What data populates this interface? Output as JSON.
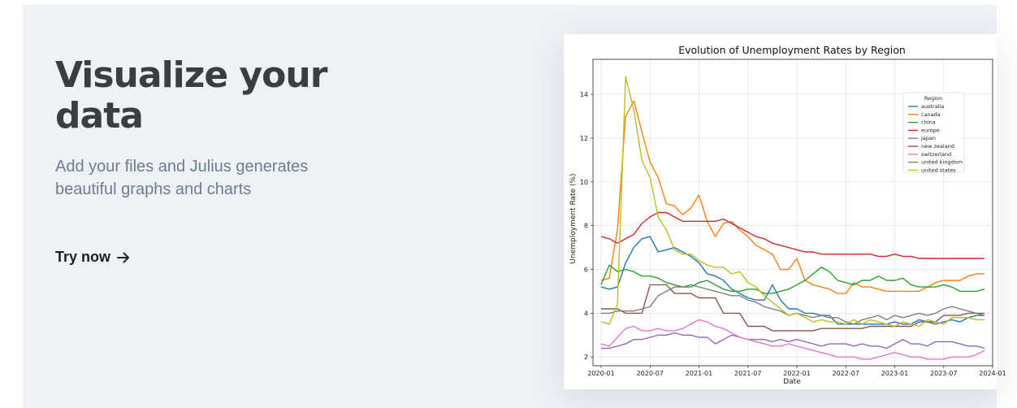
{
  "hero": {
    "title_line1": "Visualize your",
    "title_line2": "data",
    "subtitle": "Add your files and Julius generates beautiful graphs and charts",
    "cta_label": "Try now",
    "cta_icon": "arrow-right-icon"
  },
  "colors": {
    "panel_bg": "#eef2f7",
    "title": "#3b3d42",
    "subtitle": "#6e7d90",
    "cta": "#1c1f24"
  },
  "chart_data": {
    "type": "line",
    "title": "Evolution of Unemployment Rates by Region",
    "xlabel": "Date",
    "ylabel": "Unemployment Rate (%)",
    "ylim": [
      1.6,
      15.6
    ],
    "xlim": [
      "2019-12",
      "2024-01"
    ],
    "y_ticks": [
      "2",
      "4",
      "6",
      "8",
      "10",
      "12",
      "14"
    ],
    "x_ticks": [
      "2020-01",
      "2020-07",
      "2021-01",
      "2021-07",
      "2022-01",
      "2022-07",
      "2023-01",
      "2023-07",
      "2024-01"
    ],
    "grid": true,
    "legend_title": "Region",
    "legend_position": "top-right",
    "x": [
      "2020-01",
      "2020-02",
      "2020-03",
      "2020-04",
      "2020-05",
      "2020-06",
      "2020-07",
      "2020-08",
      "2020-09",
      "2020-10",
      "2020-11",
      "2020-12",
      "2021-01",
      "2021-02",
      "2021-03",
      "2021-04",
      "2021-05",
      "2021-06",
      "2021-07",
      "2021-08",
      "2021-09",
      "2021-10",
      "2021-11",
      "2021-12",
      "2022-01",
      "2022-02",
      "2022-03",
      "2022-04",
      "2022-05",
      "2022-06",
      "2022-07",
      "2022-08",
      "2022-09",
      "2022-10",
      "2022-11",
      "2022-12",
      "2023-01",
      "2023-02",
      "2023-03",
      "2023-04",
      "2023-05",
      "2023-06",
      "2023-07",
      "2023-08",
      "2023-09",
      "2023-10",
      "2023-11",
      "2023-12"
    ],
    "series": [
      {
        "name": "australia",
        "color": "#1f77b4",
        "values": [
          5.2,
          5.1,
          5.2,
          6.3,
          7.0,
          7.4,
          7.5,
          6.8,
          6.9,
          7.0,
          6.8,
          6.6,
          6.3,
          5.8,
          5.7,
          5.5,
          5.1,
          4.9,
          4.7,
          4.6,
          4.6,
          5.3,
          4.6,
          4.2,
          4.2,
          4.0,
          4.0,
          3.9,
          3.9,
          3.5,
          3.5,
          3.5,
          3.5,
          3.5,
          3.5,
          3.5,
          3.6,
          3.5,
          3.5,
          3.7,
          3.6,
          3.5,
          3.6,
          3.7,
          3.6,
          3.8,
          3.9,
          3.9
        ]
      },
      {
        "name": "canada",
        "color": "#ff7f0e",
        "values": [
          5.5,
          5.6,
          7.8,
          13.0,
          13.7,
          12.3,
          10.9,
          10.2,
          9.0,
          8.9,
          8.5,
          8.8,
          9.4,
          8.2,
          7.5,
          8.1,
          8.2,
          7.8,
          7.5,
          7.1,
          6.9,
          6.7,
          6.0,
          6.0,
          6.5,
          5.5,
          5.3,
          5.2,
          5.1,
          4.9,
          4.9,
          5.4,
          5.2,
          5.2,
          5.1,
          5.0,
          5.0,
          5.0,
          5.0,
          5.0,
          5.2,
          5.4,
          5.5,
          5.5,
          5.5,
          5.7,
          5.8,
          5.8
        ]
      },
      {
        "name": "china",
        "color": "#2ca02c",
        "values": [
          5.3,
          6.2,
          5.9,
          6.0,
          5.9,
          5.7,
          5.7,
          5.6,
          5.4,
          5.3,
          5.2,
          5.2,
          5.4,
          5.5,
          5.3,
          5.1,
          5.0,
          5.0,
          5.1,
          5.1,
          4.9,
          4.9,
          5.0,
          5.1,
          5.3,
          5.5,
          5.8,
          6.1,
          5.9,
          5.5,
          5.4,
          5.3,
          5.5,
          5.5,
          5.7,
          5.5,
          5.5,
          5.6,
          5.3,
          5.2,
          5.2,
          5.2,
          5.3,
          5.2,
          5.0,
          5.0,
          5.0,
          5.1
        ]
      },
      {
        "name": "europe",
        "color": "#d62728",
        "values": [
          7.5,
          7.4,
          7.2,
          7.4,
          7.6,
          8.1,
          8.4,
          8.6,
          8.6,
          8.4,
          8.2,
          8.2,
          8.2,
          8.2,
          8.2,
          8.3,
          8.1,
          7.9,
          7.7,
          7.5,
          7.4,
          7.2,
          7.1,
          7.0,
          6.9,
          6.8,
          6.8,
          6.7,
          6.7,
          6.7,
          6.7,
          6.7,
          6.7,
          6.7,
          6.6,
          6.6,
          6.7,
          6.6,
          6.6,
          6.5,
          6.5,
          6.5,
          6.5,
          6.5,
          6.5,
          6.5,
          6.5,
          6.5
        ]
      },
      {
        "name": "japan",
        "color": "#9467bd",
        "values": [
          2.4,
          2.4,
          2.5,
          2.6,
          2.8,
          2.8,
          2.9,
          3.0,
          3.0,
          3.1,
          3.0,
          3.0,
          2.9,
          2.9,
          2.6,
          2.8,
          3.0,
          2.9,
          2.8,
          2.8,
          2.8,
          2.7,
          2.8,
          2.7,
          2.8,
          2.7,
          2.6,
          2.5,
          2.6,
          2.6,
          2.6,
          2.5,
          2.6,
          2.5,
          2.5,
          2.4,
          2.6,
          2.8,
          2.6,
          2.6,
          2.5,
          2.7,
          2.7,
          2.7,
          2.6,
          2.5,
          2.5,
          2.4
        ]
      },
      {
        "name": "new zealand",
        "color": "#8c564b",
        "values": [
          4.2,
          4.2,
          4.2,
          4.0,
          4.0,
          4.0,
          5.3,
          5.3,
          5.3,
          4.9,
          4.9,
          4.9,
          4.7,
          4.7,
          4.7,
          4.0,
          4.0,
          4.0,
          3.4,
          3.4,
          3.4,
          3.2,
          3.2,
          3.2,
          3.2,
          3.2,
          3.2,
          3.3,
          3.3,
          3.3,
          3.3,
          3.3,
          3.3,
          3.4,
          3.4,
          3.4,
          3.4,
          3.4,
          3.4,
          3.6,
          3.6,
          3.6,
          3.9,
          3.9,
          3.9,
          4.0,
          4.0,
          4.0
        ]
      },
      {
        "name": "switzerland",
        "color": "#e377c2",
        "values": [
          2.6,
          2.5,
          2.9,
          3.3,
          3.4,
          3.2,
          3.2,
          3.3,
          3.2,
          3.2,
          3.3,
          3.5,
          3.7,
          3.6,
          3.4,
          3.3,
          3.1,
          2.9,
          2.8,
          2.7,
          2.6,
          2.5,
          2.5,
          2.6,
          2.5,
          2.4,
          2.3,
          2.2,
          2.1,
          2.0,
          2.0,
          2.0,
          1.9,
          1.9,
          2.0,
          2.1,
          2.2,
          2.1,
          2.0,
          2.0,
          1.9,
          1.9,
          1.9,
          2.0,
          2.0,
          2.0,
          2.1,
          2.3
        ]
      },
      {
        "name": "united kingdom",
        "color": "#7f7f7f",
        "values": [
          4.0,
          4.0,
          4.1,
          4.1,
          4.1,
          4.2,
          4.3,
          4.8,
          5.0,
          5.2,
          5.2,
          5.3,
          5.2,
          5.1,
          5.0,
          4.9,
          4.8,
          4.8,
          4.6,
          4.5,
          4.3,
          4.2,
          4.1,
          3.9,
          4.0,
          3.9,
          3.8,
          3.9,
          3.8,
          3.8,
          3.6,
          3.5,
          3.7,
          3.8,
          3.9,
          3.7,
          3.9,
          3.8,
          3.9,
          4.0,
          3.9,
          4.0,
          4.2,
          4.3,
          4.2,
          4.1,
          4.0,
          3.9
        ]
      },
      {
        "name": "united states",
        "color": "#bcbd22",
        "values": [
          3.6,
          3.5,
          4.4,
          14.8,
          13.3,
          11.0,
          10.2,
          8.4,
          7.8,
          6.9,
          6.7,
          6.7,
          6.4,
          6.2,
          6.1,
          6.1,
          5.8,
          5.9,
          5.4,
          5.2,
          4.8,
          4.5,
          4.2,
          3.9,
          4.0,
          3.8,
          3.6,
          3.7,
          3.6,
          3.6,
          3.5,
          3.7,
          3.5,
          3.7,
          3.6,
          3.5,
          3.4,
          3.6,
          3.5,
          3.4,
          3.7,
          3.6,
          3.5,
          3.8,
          3.8,
          3.8,
          3.7,
          3.7
        ]
      }
    ]
  }
}
